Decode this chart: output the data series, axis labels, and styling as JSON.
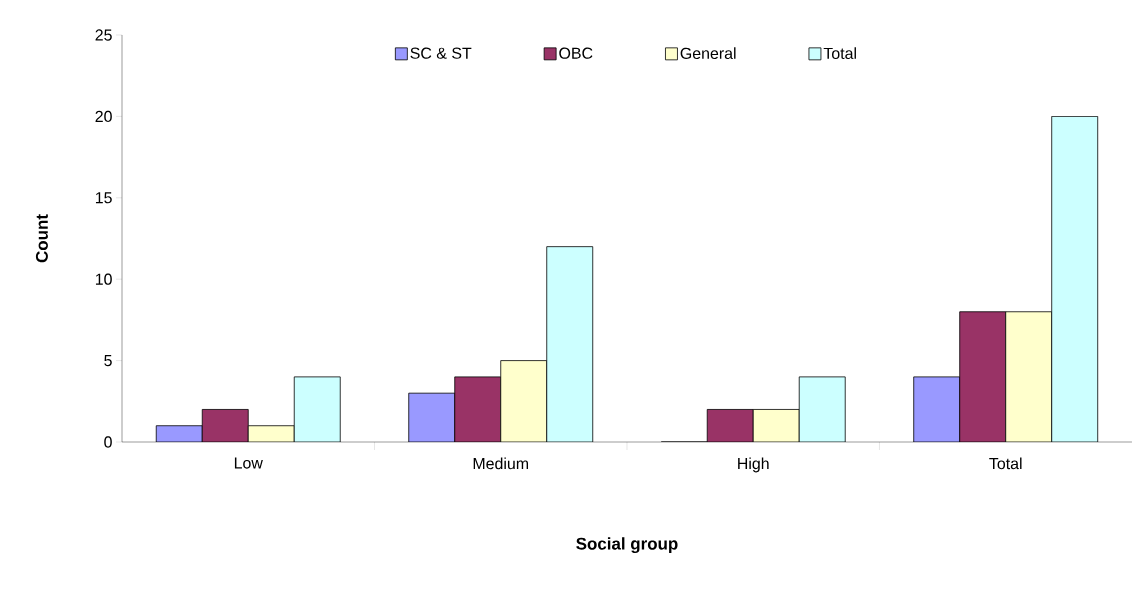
{
  "chart_data": {
    "type": "bar",
    "xlabel": "Social group",
    "ylabel": "Count",
    "categories": [
      "Low",
      "Medium",
      "High",
      "Total"
    ],
    "series": [
      {
        "name": "SC & ST",
        "color": "#9999ff",
        "values": [
          1,
          3,
          0,
          4
        ]
      },
      {
        "name": "OBC",
        "color": "#993366",
        "values": [
          2,
          4,
          2,
          8
        ]
      },
      {
        "name": "General",
        "color": "#ffffcc",
        "values": [
          1,
          5,
          2,
          8
        ]
      },
      {
        "name": "Total",
        "color": "#ccffff",
        "values": [
          4,
          12,
          4,
          20
        ]
      }
    ],
    "ylim": [
      0,
      25
    ],
    "yticks": [
      0,
      5,
      10,
      15,
      20,
      25
    ],
    "grid": false,
    "legend": "top"
  }
}
